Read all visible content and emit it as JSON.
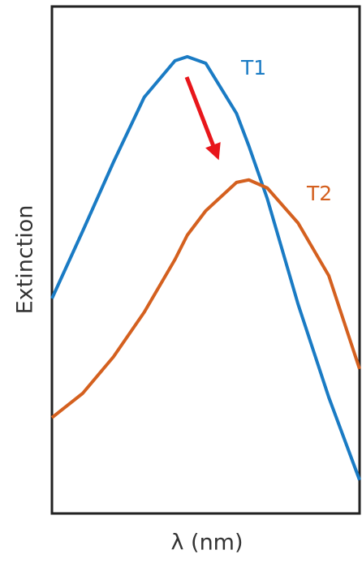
{
  "chart_data": {
    "type": "line",
    "x_label": "λ (nm)",
    "y_label": "Extinction",
    "x": [
      0,
      10,
      20,
      30,
      40,
      44,
      50,
      60,
      64,
      70,
      80,
      90,
      100
    ],
    "xlim": [
      0,
      100
    ],
    "ylim": [
      0,
      100
    ],
    "series": [
      {
        "name": "T1",
        "color": "#1a7bc4",
        "values": [
          42.4,
          55.7,
          69.3,
          82.1,
          89.3,
          90.1,
          88.8,
          78.9,
          72.5,
          62.1,
          41.3,
          22.9,
          6.6
        ]
      },
      {
        "name": "T2",
        "color": "#d4601f",
        "values": [
          18.9,
          23.7,
          30.9,
          39.7,
          50.1,
          54.9,
          59.7,
          65.3,
          65.8,
          64.2,
          57.3,
          46.9,
          28.5
        ]
      }
    ]
  }
}
